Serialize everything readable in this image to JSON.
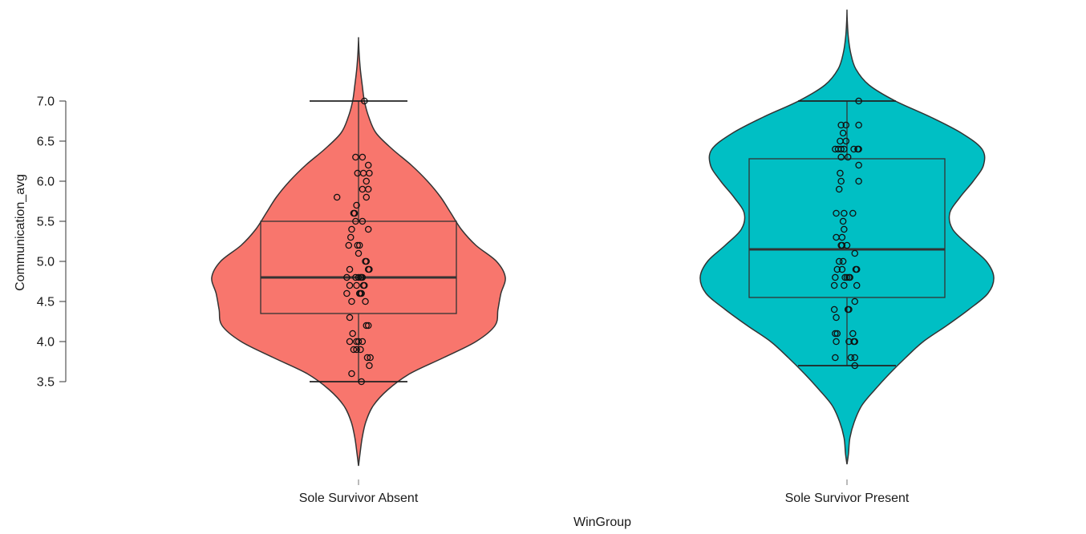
{
  "chart_data": {
    "type": "violin",
    "xlabel": "WinGroup",
    "ylabel": "Communication_avg",
    "ylim": [
      2.35,
      7.9
    ],
    "y_ticks": [
      "3.5",
      "4.0",
      "4.5",
      "5.0",
      "5.5",
      "6.0",
      "6.5",
      "7.0"
    ],
    "categories": [
      "Sole Survivor Absent",
      "Sole Survivor Present"
    ],
    "grid": false,
    "legend": "none",
    "colors": {
      "Sole Survivor Absent": "#F8766D",
      "Sole Survivor Present": "#00BFC4",
      "outline": "#333333"
    },
    "groups": [
      {
        "name": "Sole Survivor Absent",
        "box": {
          "whisker_low": 3.5,
          "q1": 4.35,
          "median": 4.8,
          "q3": 5.5,
          "whisker_high": 7.0
        },
        "density": [
          [
            2.45,
            0.0
          ],
          [
            2.6,
            0.01
          ],
          [
            2.8,
            0.025
          ],
          [
            3.0,
            0.05
          ],
          [
            3.2,
            0.1
          ],
          [
            3.4,
            0.2
          ],
          [
            3.6,
            0.35
          ],
          [
            3.8,
            0.58
          ],
          [
            4.0,
            0.8
          ],
          [
            4.2,
            0.93
          ],
          [
            4.4,
            0.95
          ],
          [
            4.6,
            0.97
          ],
          [
            4.8,
            1.0
          ],
          [
            5.0,
            0.94
          ],
          [
            5.2,
            0.8
          ],
          [
            5.4,
            0.7
          ],
          [
            5.6,
            0.63
          ],
          [
            5.8,
            0.56
          ],
          [
            6.0,
            0.47
          ],
          [
            6.2,
            0.36
          ],
          [
            6.4,
            0.23
          ],
          [
            6.6,
            0.12
          ],
          [
            6.8,
            0.07
          ],
          [
            7.0,
            0.04
          ],
          [
            7.2,
            0.025
          ],
          [
            7.4,
            0.012
          ],
          [
            7.6,
            0.004
          ],
          [
            7.77,
            0.0
          ]
        ],
        "points": [
          [
            7.0,
            0.06
          ],
          [
            6.3,
            -0.03
          ],
          [
            6.3,
            0.04
          ],
          [
            6.2,
            0.1
          ],
          [
            6.1,
            -0.01
          ],
          [
            6.1,
            0.05
          ],
          [
            6.1,
            0.11
          ],
          [
            6.0,
            0.08
          ],
          [
            5.9,
            0.04
          ],
          [
            5.9,
            0.1
          ],
          [
            5.8,
            -0.22
          ],
          [
            5.8,
            0.08
          ],
          [
            5.7,
            -0.02
          ],
          [
            5.6,
            -0.05
          ],
          [
            5.6,
            -0.04
          ],
          [
            5.5,
            -0.03
          ],
          [
            5.5,
            0.04
          ],
          [
            5.4,
            -0.07
          ],
          [
            5.4,
            0.1
          ],
          [
            5.3,
            -0.08
          ],
          [
            5.2,
            -0.1
          ],
          [
            5.2,
            -0.01
          ],
          [
            5.2,
            0.01
          ],
          [
            5.1,
            0.0
          ],
          [
            5.0,
            0.07
          ],
          [
            5.0,
            0.08
          ],
          [
            4.9,
            -0.09
          ],
          [
            4.9,
            0.1
          ],
          [
            4.9,
            0.11
          ],
          [
            4.8,
            -0.12
          ],
          [
            4.8,
            -0.03
          ],
          [
            4.8,
            0.0
          ],
          [
            4.8,
            0.02
          ],
          [
            4.8,
            0.03
          ],
          [
            4.8,
            0.04
          ],
          [
            4.7,
            -0.09
          ],
          [
            4.7,
            -0.02
          ],
          [
            4.7,
            0.05
          ],
          [
            4.7,
            0.06
          ],
          [
            4.6,
            -0.12
          ],
          [
            4.6,
            0.01
          ],
          [
            4.6,
            0.02
          ],
          [
            4.6,
            0.03
          ],
          [
            4.5,
            -0.07
          ],
          [
            4.5,
            0.07
          ],
          [
            4.3,
            -0.09
          ],
          [
            4.2,
            0.08
          ],
          [
            4.2,
            0.1
          ],
          [
            4.1,
            -0.06
          ],
          [
            4.0,
            -0.09
          ],
          [
            4.0,
            -0.02
          ],
          [
            4.0,
            0.0
          ],
          [
            4.0,
            0.04
          ],
          [
            3.9,
            -0.05
          ],
          [
            3.9,
            -0.02
          ],
          [
            3.9,
            0.02
          ],
          [
            3.8,
            0.09
          ],
          [
            3.8,
            0.12
          ],
          [
            3.7,
            0.11
          ],
          [
            3.6,
            -0.07
          ],
          [
            3.5,
            0.03
          ]
        ]
      },
      {
        "name": "Sole Survivor Present",
        "box": {
          "whisker_low": 3.7,
          "q1": 4.55,
          "median": 5.15,
          "q3": 6.28,
          "whisker_high": 7.0
        },
        "density": [
          [
            2.47,
            0.0
          ],
          [
            2.6,
            0.01
          ],
          [
            2.8,
            0.02
          ],
          [
            3.0,
            0.05
          ],
          [
            3.2,
            0.1
          ],
          [
            3.4,
            0.19
          ],
          [
            3.6,
            0.29
          ],
          [
            3.8,
            0.4
          ],
          [
            4.0,
            0.52
          ],
          [
            4.2,
            0.68
          ],
          [
            4.4,
            0.83
          ],
          [
            4.6,
            0.96
          ],
          [
            4.8,
            1.0
          ],
          [
            5.0,
            0.95
          ],
          [
            5.2,
            0.83
          ],
          [
            5.4,
            0.72
          ],
          [
            5.6,
            0.7
          ],
          [
            5.8,
            0.77
          ],
          [
            6.0,
            0.86
          ],
          [
            6.2,
            0.93
          ],
          [
            6.4,
            0.92
          ],
          [
            6.6,
            0.78
          ],
          [
            6.8,
            0.57
          ],
          [
            7.0,
            0.33
          ],
          [
            7.2,
            0.15
          ],
          [
            7.4,
            0.06
          ],
          [
            7.6,
            0.025
          ],
          [
            7.8,
            0.009
          ],
          [
            8.0,
            0.002
          ],
          [
            8.12,
            0.0
          ]
        ],
        "points": [
          [
            7.0,
            0.12
          ],
          [
            6.7,
            -0.06
          ],
          [
            6.7,
            -0.01
          ],
          [
            6.7,
            0.12
          ],
          [
            6.6,
            -0.04
          ],
          [
            6.5,
            -0.07
          ],
          [
            6.5,
            -0.01
          ],
          [
            6.4,
            -0.12
          ],
          [
            6.4,
            -0.09
          ],
          [
            6.4,
            -0.06
          ],
          [
            6.4,
            -0.03
          ],
          [
            6.4,
            0.07
          ],
          [
            6.4,
            0.11
          ],
          [
            6.4,
            0.12
          ],
          [
            6.3,
            -0.06
          ],
          [
            6.3,
            0.01
          ],
          [
            6.2,
            0.12
          ],
          [
            6.1,
            -0.07
          ],
          [
            6.0,
            -0.06
          ],
          [
            6.0,
            0.12
          ],
          [
            5.9,
            -0.08
          ],
          [
            5.6,
            -0.11
          ],
          [
            5.6,
            -0.03
          ],
          [
            5.6,
            0.06
          ],
          [
            5.5,
            -0.04
          ],
          [
            5.4,
            -0.03
          ],
          [
            5.3,
            -0.11
          ],
          [
            5.3,
            -0.05
          ],
          [
            5.2,
            -0.06
          ],
          [
            5.2,
            -0.05
          ],
          [
            5.2,
            0.0
          ],
          [
            5.1,
            0.08
          ],
          [
            5.0,
            -0.08
          ],
          [
            5.0,
            -0.04
          ],
          [
            4.9,
            -0.1
          ],
          [
            4.9,
            -0.05
          ],
          [
            4.9,
            0.09
          ],
          [
            4.9,
            0.1
          ],
          [
            4.8,
            -0.12
          ],
          [
            4.8,
            -0.02
          ],
          [
            4.8,
            0.0
          ],
          [
            4.8,
            0.02
          ],
          [
            4.8,
            0.03
          ],
          [
            4.7,
            -0.13
          ],
          [
            4.7,
            -0.03
          ],
          [
            4.7,
            0.1
          ],
          [
            4.5,
            0.08
          ],
          [
            4.4,
            -0.13
          ],
          [
            4.4,
            0.01
          ],
          [
            4.4,
            0.02
          ],
          [
            4.3,
            -0.11
          ],
          [
            4.1,
            -0.12
          ],
          [
            4.1,
            -0.1
          ],
          [
            4.1,
            0.06
          ],
          [
            4.0,
            -0.11
          ],
          [
            4.0,
            0.02
          ],
          [
            4.0,
            0.07
          ],
          [
            4.0,
            0.08
          ],
          [
            3.8,
            -0.12
          ],
          [
            3.8,
            0.04
          ],
          [
            3.8,
            0.08
          ],
          [
            3.7,
            0.08
          ]
        ]
      }
    ]
  }
}
